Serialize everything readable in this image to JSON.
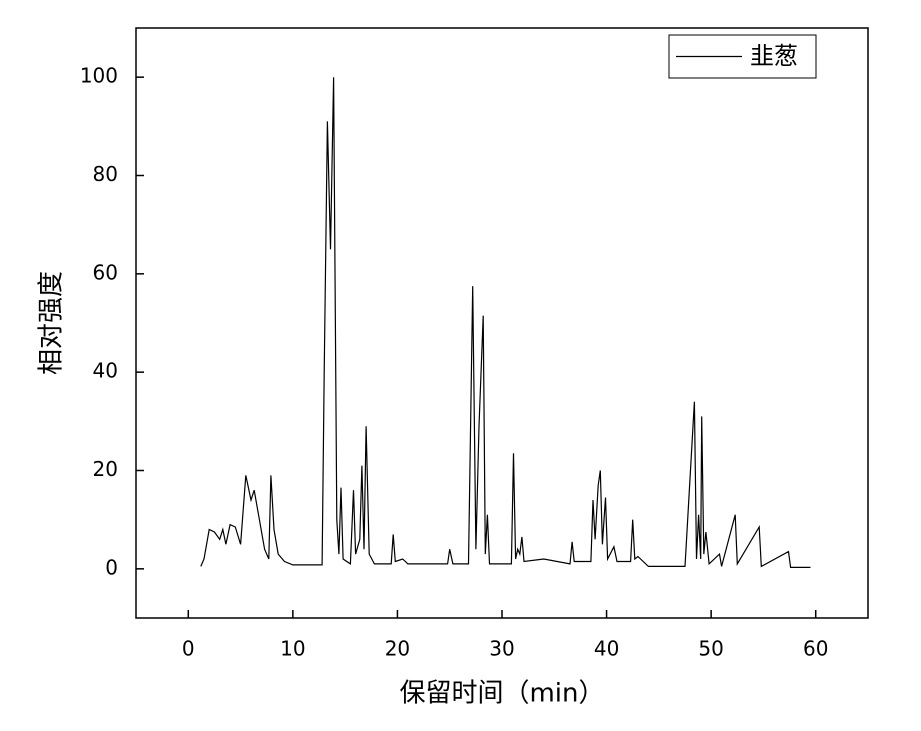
{
  "chart_data": {
    "type": "line",
    "xlabel": "保留时间（min）",
    "ylabel": "相对强度",
    "xlim": [
      -5,
      65
    ],
    "ylim": [
      -10,
      110
    ],
    "xticks": [
      0,
      10,
      20,
      30,
      40,
      50,
      60
    ],
    "yticks": [
      0,
      20,
      40,
      60,
      80,
      100
    ],
    "legend": "upper right",
    "series": [
      {
        "name": "韭葱",
        "color": "#000000",
        "x": [
          1.2,
          1.5,
          2.0,
          2.5,
          3.0,
          3.3,
          3.6,
          4.0,
          4.5,
          5.0,
          5.5,
          6.0,
          6.3,
          6.8,
          7.3,
          7.7,
          7.9,
          8.2,
          8.6,
          9.2,
          10,
          12.8,
          13.0,
          13.3,
          13.6,
          13.9,
          14.2,
          14.4,
          14.6,
          14.8,
          15.5,
          15.8,
          16.0,
          16.4,
          16.6,
          16.8,
          17.0,
          17.3,
          17.8,
          19.4,
          19.6,
          19.8,
          20.5,
          21,
          24.8,
          25.0,
          25.3,
          26.8,
          27.2,
          27.5,
          27.8,
          28.2,
          28.4,
          28.6,
          28.8,
          30.9,
          31.1,
          31.3,
          31.5,
          31.7,
          31.9,
          32.1,
          34,
          36.5,
          36.7,
          36.9,
          38.5,
          38.7,
          38.9,
          39.2,
          39.4,
          39.6,
          39.9,
          40.1,
          40.7,
          41,
          42.3,
          42.5,
          42.7,
          43,
          44,
          47.5,
          48.4,
          48.6,
          48.8,
          49.0,
          49.1,
          49.3,
          49.5,
          49.8,
          50.8,
          51.0,
          52.3,
          52.5,
          54.6,
          54.8,
          57.4,
          57.6,
          59.5
        ],
        "values": [
          0.5,
          2,
          8,
          7.5,
          6,
          8,
          5,
          9,
          8.5,
          5,
          19,
          14,
          16,
          10,
          4,
          2,
          19,
          8,
          3,
          1.5,
          0.8,
          0.8,
          40,
          91,
          65,
          100,
          10,
          3,
          16.5,
          2,
          1,
          16,
          3,
          6,
          21,
          4,
          29,
          3,
          1,
          1,
          7,
          1.5,
          2,
          1,
          1,
          4,
          1,
          1,
          57.5,
          4,
          29,
          51.5,
          3,
          11,
          1,
          1,
          23.5,
          2,
          4,
          3,
          6.5,
          1.5,
          2,
          1,
          5.5,
          1.5,
          1.5,
          14,
          6,
          17,
          20,
          5,
          14.5,
          2,
          4.5,
          1.5,
          1.5,
          10,
          2,
          2.5,
          0.5,
          0.5,
          34,
          2,
          11,
          2,
          31,
          3,
          7.5,
          1,
          3,
          0.5,
          11,
          1,
          8.5,
          0.5,
          3.5,
          0.3,
          0.3
        ]
      }
    ]
  }
}
